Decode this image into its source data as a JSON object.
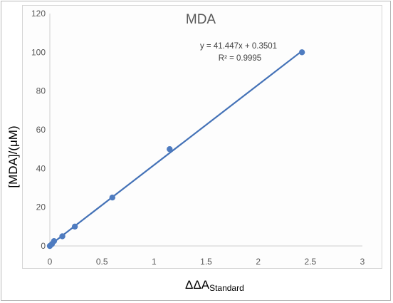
{
  "chart_data": {
    "type": "scatter",
    "title": "MDA",
    "xlabel": "ΔΔA",
    "xlabel_sub": "Standard",
    "ylabel": "[MDA]/(μM)",
    "xlim": [
      0,
      3
    ],
    "ylim": [
      0,
      120
    ],
    "x_ticks": [
      "0",
      "0.5",
      "1",
      "1.5",
      "2",
      "2.5",
      "3"
    ],
    "y_ticks": [
      "0",
      "20",
      "40",
      "60",
      "80",
      "100",
      "120"
    ],
    "x": [
      0,
      0.02,
      0.04,
      0.12,
      0.24,
      0.6,
      1.15,
      2.42
    ],
    "y": [
      0,
      1,
      2.5,
      5,
      10,
      25,
      50,
      100
    ],
    "trendline": {
      "equation": "y = 41.447x + 0.3501",
      "r_squared": "R² = 0.9995",
      "slope": 41.447,
      "intercept": 0.3501,
      "x_range": [
        0,
        2.42
      ]
    },
    "grid": false,
    "legend": "none",
    "colors": {
      "marker": "#4f7cc0",
      "line": "#4472b7",
      "axis": "#d0d0d0",
      "text": "#595959"
    }
  }
}
